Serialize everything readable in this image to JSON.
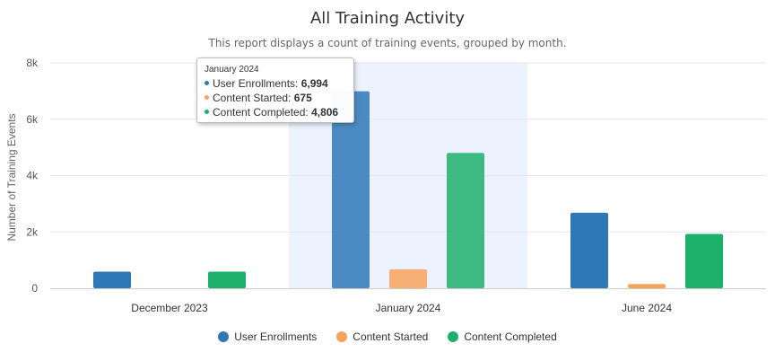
{
  "chart_data": {
    "type": "bar",
    "title": "All Training Activity",
    "subtitle": "This report displays a count of training events, grouped by month.",
    "ylabel": "Number of Training Events",
    "xlabel": "",
    "ylim": [
      0,
      8000
    ],
    "yticks": [
      0,
      2000,
      4000,
      6000,
      8000
    ],
    "ytick_labels": [
      "0",
      "2k",
      "4k",
      "6k",
      "8k"
    ],
    "categories": [
      "December 2023",
      "January 2024",
      "June 2024"
    ],
    "highlighted_category": "January 2024",
    "grid": true,
    "legend_position": "bottom",
    "series": [
      {
        "name": "User Enrollments",
        "color": "#2f78b8",
        "values": [
          590,
          6994,
          2680
        ]
      },
      {
        "name": "Content Started",
        "color": "#f7a35c",
        "values": [
          0,
          675,
          150
        ]
      },
      {
        "name": "Content Completed",
        "color": "#1db06b",
        "values": [
          590,
          4806,
          1930
        ]
      }
    ]
  },
  "tooltip": {
    "title": "January 2024",
    "rows": [
      {
        "label": "User Enrollments: ",
        "value": "6,994",
        "color": "#2f78b8"
      },
      {
        "label": "Content Started: ",
        "value": "675",
        "color": "#f7a35c"
      },
      {
        "label": "Content Completed: ",
        "value": "4,806",
        "color": "#1db06b"
      }
    ]
  }
}
